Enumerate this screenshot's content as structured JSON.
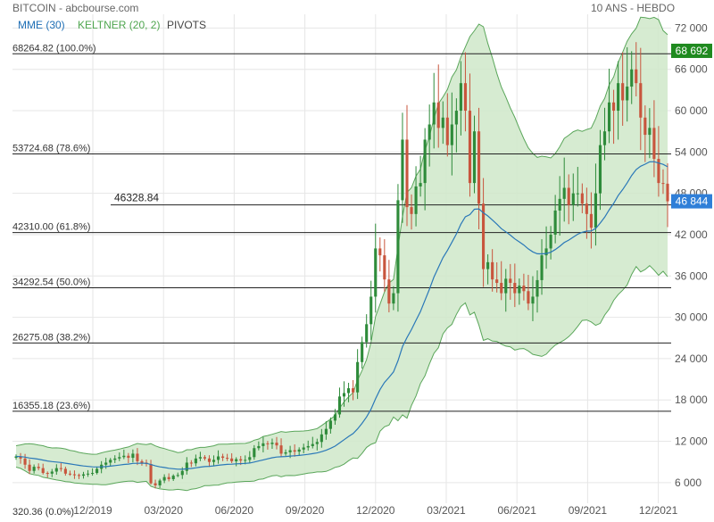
{
  "header": {
    "title": "BITCOIN - abcbourse.com",
    "range_label": "10 ANS - HEBDO"
  },
  "legend": [
    {
      "label": "MME (30)",
      "color": "#1f6fb5"
    },
    {
      "label": "KELTNER (20, 2)",
      "color": "#4fa64f"
    },
    {
      "label": "PIVOTS",
      "color": "#444444"
    }
  ],
  "colors": {
    "up": "#2e8b3a",
    "down": "#c8553d",
    "ema": "#2a78b8",
    "band_line": "#5aa65a",
    "band_fill": "#cfe8c9",
    "grid": "#e6e6e6",
    "level": "#222222",
    "last_price_bg": "#2f7fd8",
    "high_bg": "#1f8a1f"
  },
  "chart_data": {
    "type": "candlestick",
    "ylim": [
      3000,
      74000
    ],
    "y_ticks": [
      6000,
      12000,
      18000,
      24000,
      30000,
      36000,
      42000,
      48000,
      54000,
      60000,
      66000,
      72000
    ],
    "y_tick_labels": [
      "6 000",
      "12 000",
      "18 000",
      "24 000",
      "30 000",
      "36 000",
      "42 000",
      "48 000",
      "54 000",
      "60 000",
      "66 000",
      "72 000"
    ],
    "x_tick_labels": [
      "12/2019",
      "03/2020",
      "06/2020",
      "09/2020",
      "12/2020",
      "03/2021",
      "06/2021",
      "09/2021",
      "12/2021"
    ],
    "fib_levels": [
      {
        "value": 68264.82,
        "label": "68264.82  (100.0%)"
      },
      {
        "value": 53724.68,
        "label": "53724.68  (78.6%)"
      },
      {
        "value": 42310.0,
        "label": "42310.00  (61.8%)"
      },
      {
        "value": 34292.54,
        "label": "34292.54  (50.0%)"
      },
      {
        "value": 26275.08,
        "label": "26275.08  (38.2%)"
      },
      {
        "value": 16355.18,
        "label": "16355.18  (23.6%)"
      },
      {
        "value": 320.36,
        "label": "320.36  (0.0%)"
      }
    ],
    "pivot": {
      "value": 46328.84,
      "label": "46328.84"
    },
    "high_marker": {
      "value": 68692,
      "label": "68 692"
    },
    "last_price": {
      "value": 46844,
      "label": "46 844"
    },
    "closes": [
      9800,
      9500,
      8600,
      7700,
      8300,
      8100,
      7400,
      7300,
      7600,
      8100,
      8000,
      7300,
      7200,
      7100,
      7000,
      7200,
      7300,
      7400,
      8000,
      8600,
      8900,
      9300,
      9500,
      9700,
      9900,
      9600,
      10200,
      9100,
      8900,
      8700,
      5900,
      5600,
      6300,
      6800,
      6500,
      7000,
      7100,
      7700,
      8900,
      8800,
      9500,
      9700,
      9500,
      9000,
      9300,
      9800,
      9600,
      9500,
      9100,
      9400,
      9200,
      9300,
      9700,
      11000,
      11300,
      11700,
      11600,
      11800,
      11400,
      10200,
      10400,
      10700,
      10500,
      10800,
      11100,
      11300,
      11600,
      11900,
      13000,
      13800,
      15000,
      15900,
      18500,
      19000,
      19700,
      19100,
      23500,
      26400,
      29000,
      33000,
      40000,
      39000,
      35500,
      32000,
      33500,
      47000,
      55800,
      46000,
      45000,
      49000,
      49500,
      55800,
      58000,
      61200,
      57500,
      59000,
      55000,
      58000,
      60000,
      64000,
      60000,
      49500,
      57000,
      46500,
      37000,
      38000,
      35500,
      35000,
      33500,
      35600,
      35000,
      33500,
      34600,
      33800,
      32000,
      33000,
      35400,
      39000,
      40000,
      42000,
      45500,
      47200,
      48800,
      46300,
      48000,
      48000,
      46500,
      45000,
      43000,
      48000,
      55000,
      57000,
      61200,
      60000,
      64000,
      61500,
      63500,
      66000,
      64000,
      59000,
      56500,
      57500,
      53000,
      49500,
      49400,
      46844
    ]
  }
}
